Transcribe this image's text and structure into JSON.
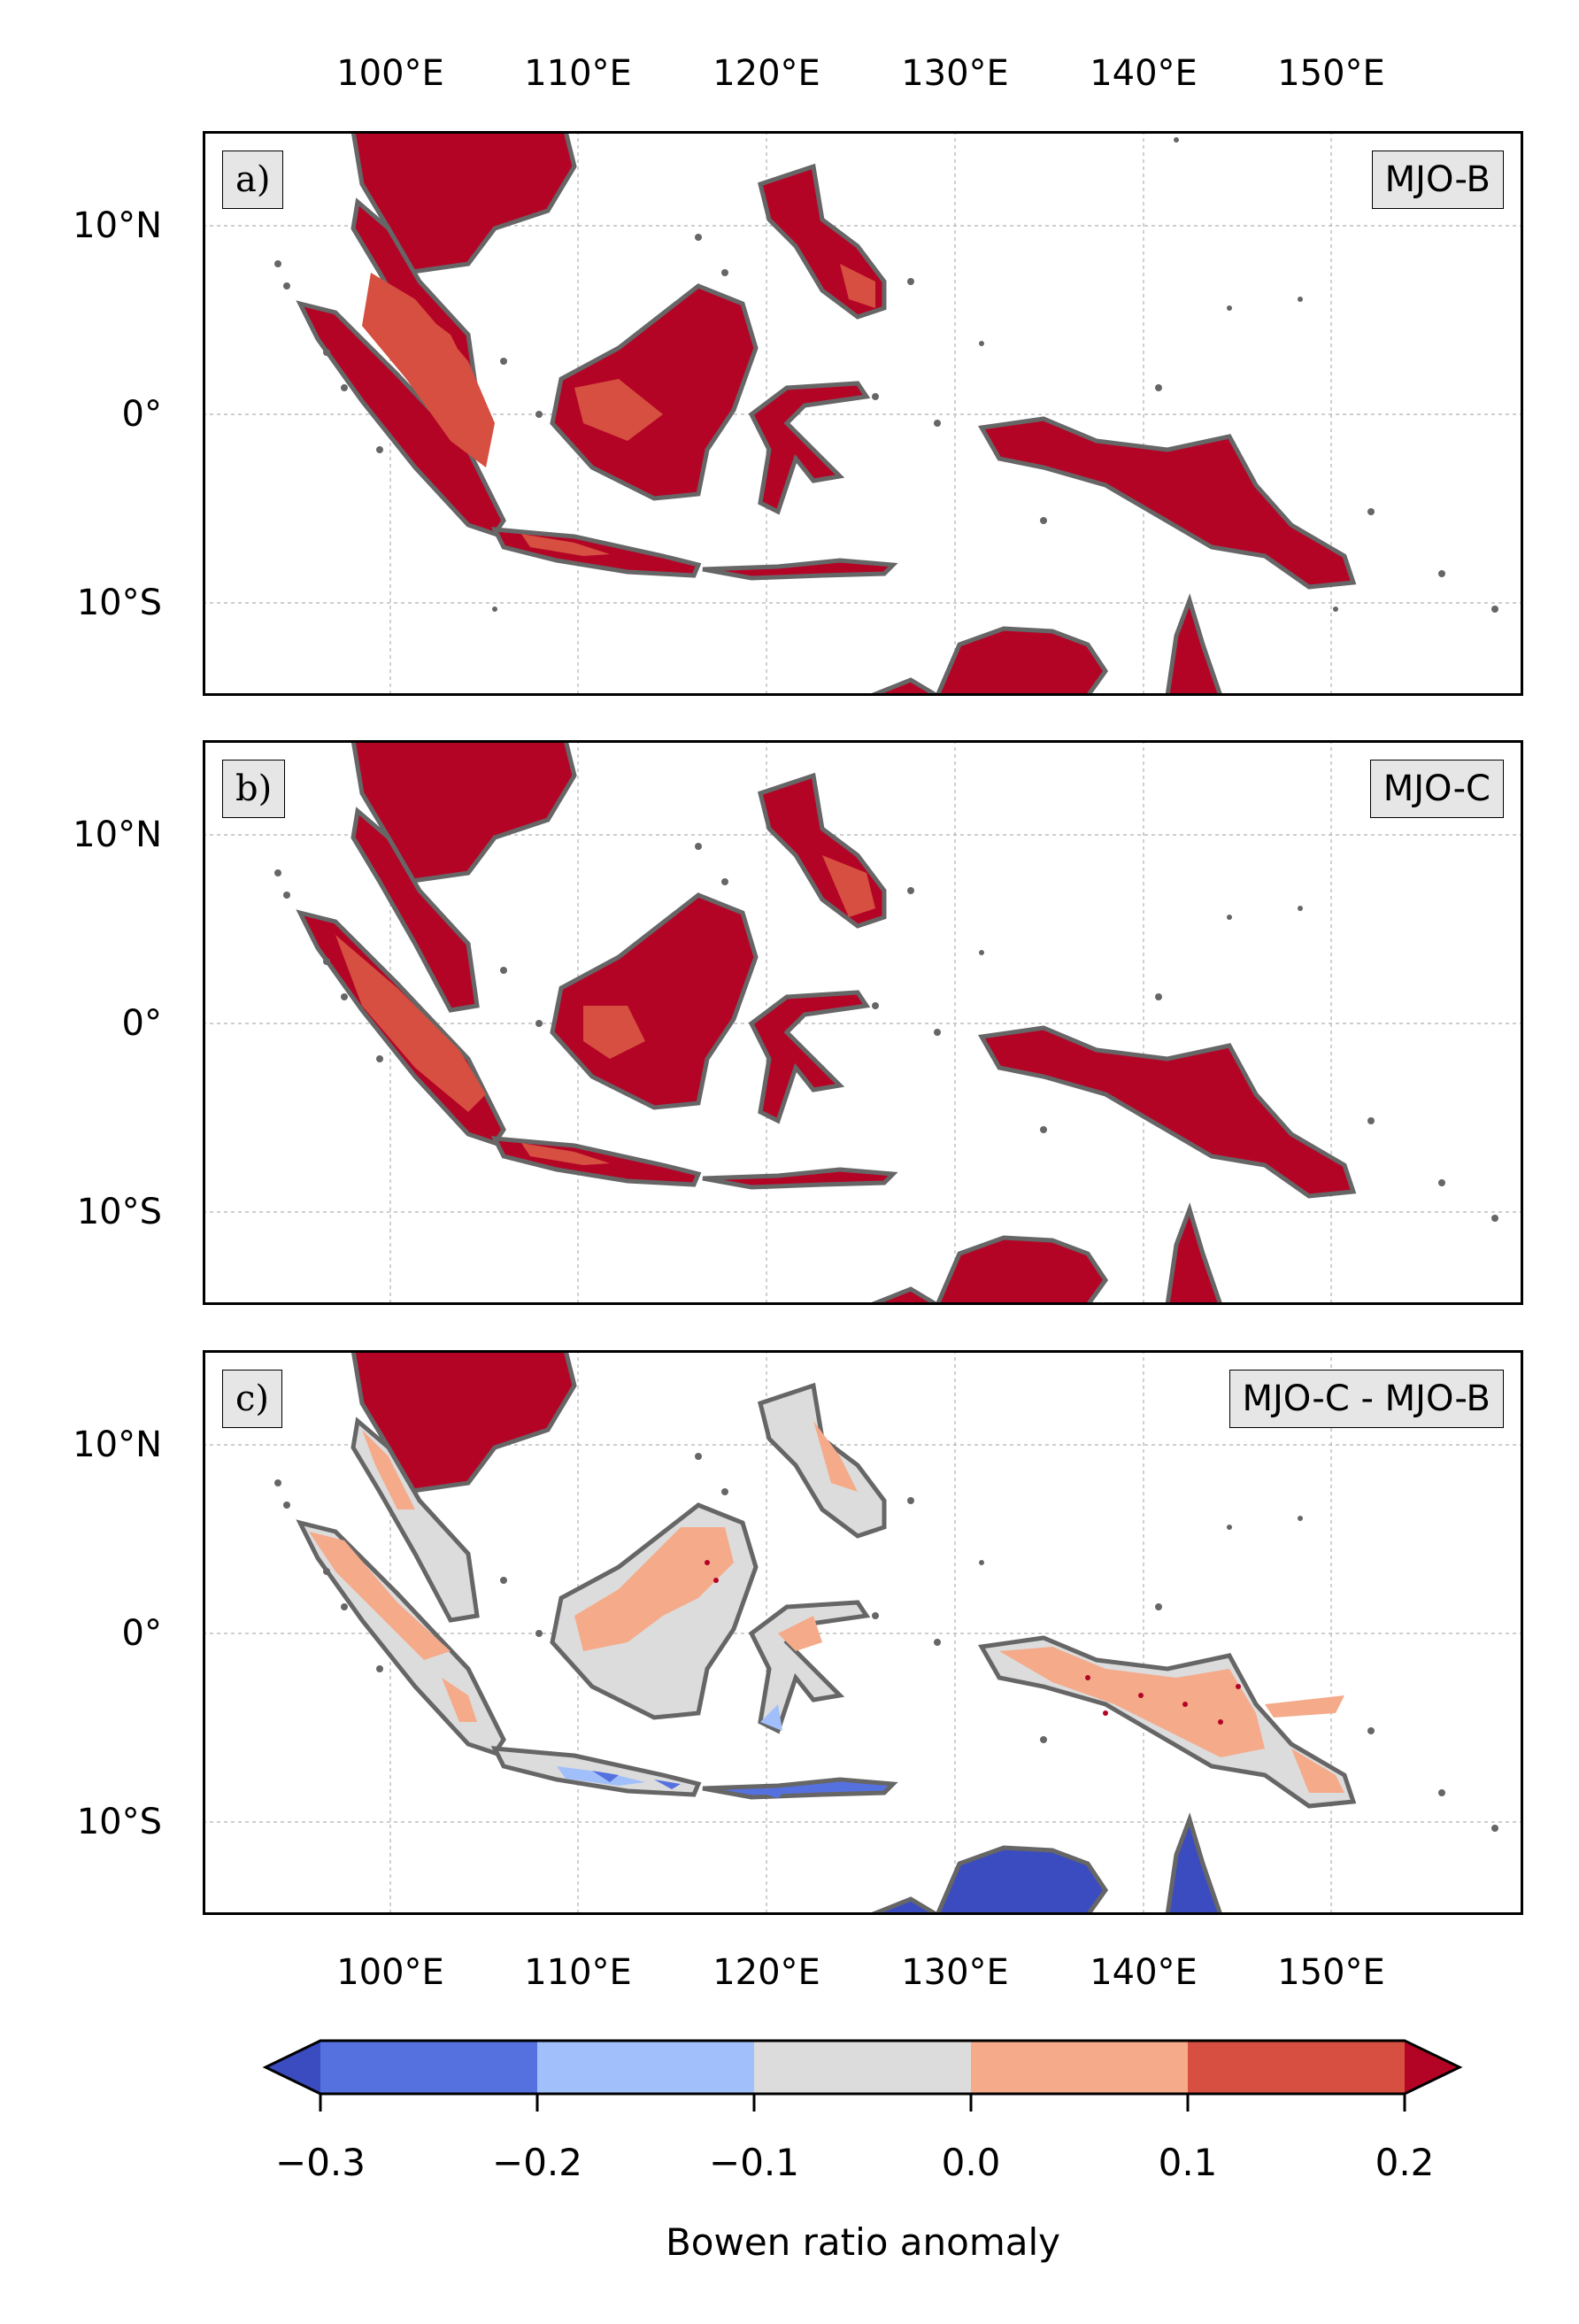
{
  "panels": [
    {
      "letter": "a)",
      "title": "MJO-B"
    },
    {
      "letter": "b)",
      "title": "MJO-C"
    },
    {
      "letter": "c)",
      "title": "MJO-C - MJO-B"
    }
  ],
  "lon_ticks": [
    "100°E",
    "110°E",
    "120°E",
    "130°E",
    "140°E",
    "150°E"
  ],
  "lat_ticks": [
    "10°N",
    "0°",
    "10°S"
  ],
  "map_extent": {
    "lon": [
      90,
      160
    ],
    "lat": [
      -15,
      15
    ]
  },
  "colorbar": {
    "label": "Bowen ratio anomaly",
    "ticks": [
      "−0.3",
      "−0.2",
      "−0.1",
      "0.0",
      "0.1",
      "0.2"
    ],
    "boundaries": [
      -0.3,
      -0.2,
      -0.1,
      0.0,
      0.1,
      0.2
    ],
    "colors": [
      "#5571e0",
      "#a1bffa",
      "#dcdcdc",
      "#f5aa8a",
      "#d64f40"
    ],
    "under_color": "#3b4cc0",
    "over_color": "#b40426",
    "extend": "both"
  },
  "colors": {
    "land_border": "#666666",
    "grid": "#b0b0b0"
  }
}
